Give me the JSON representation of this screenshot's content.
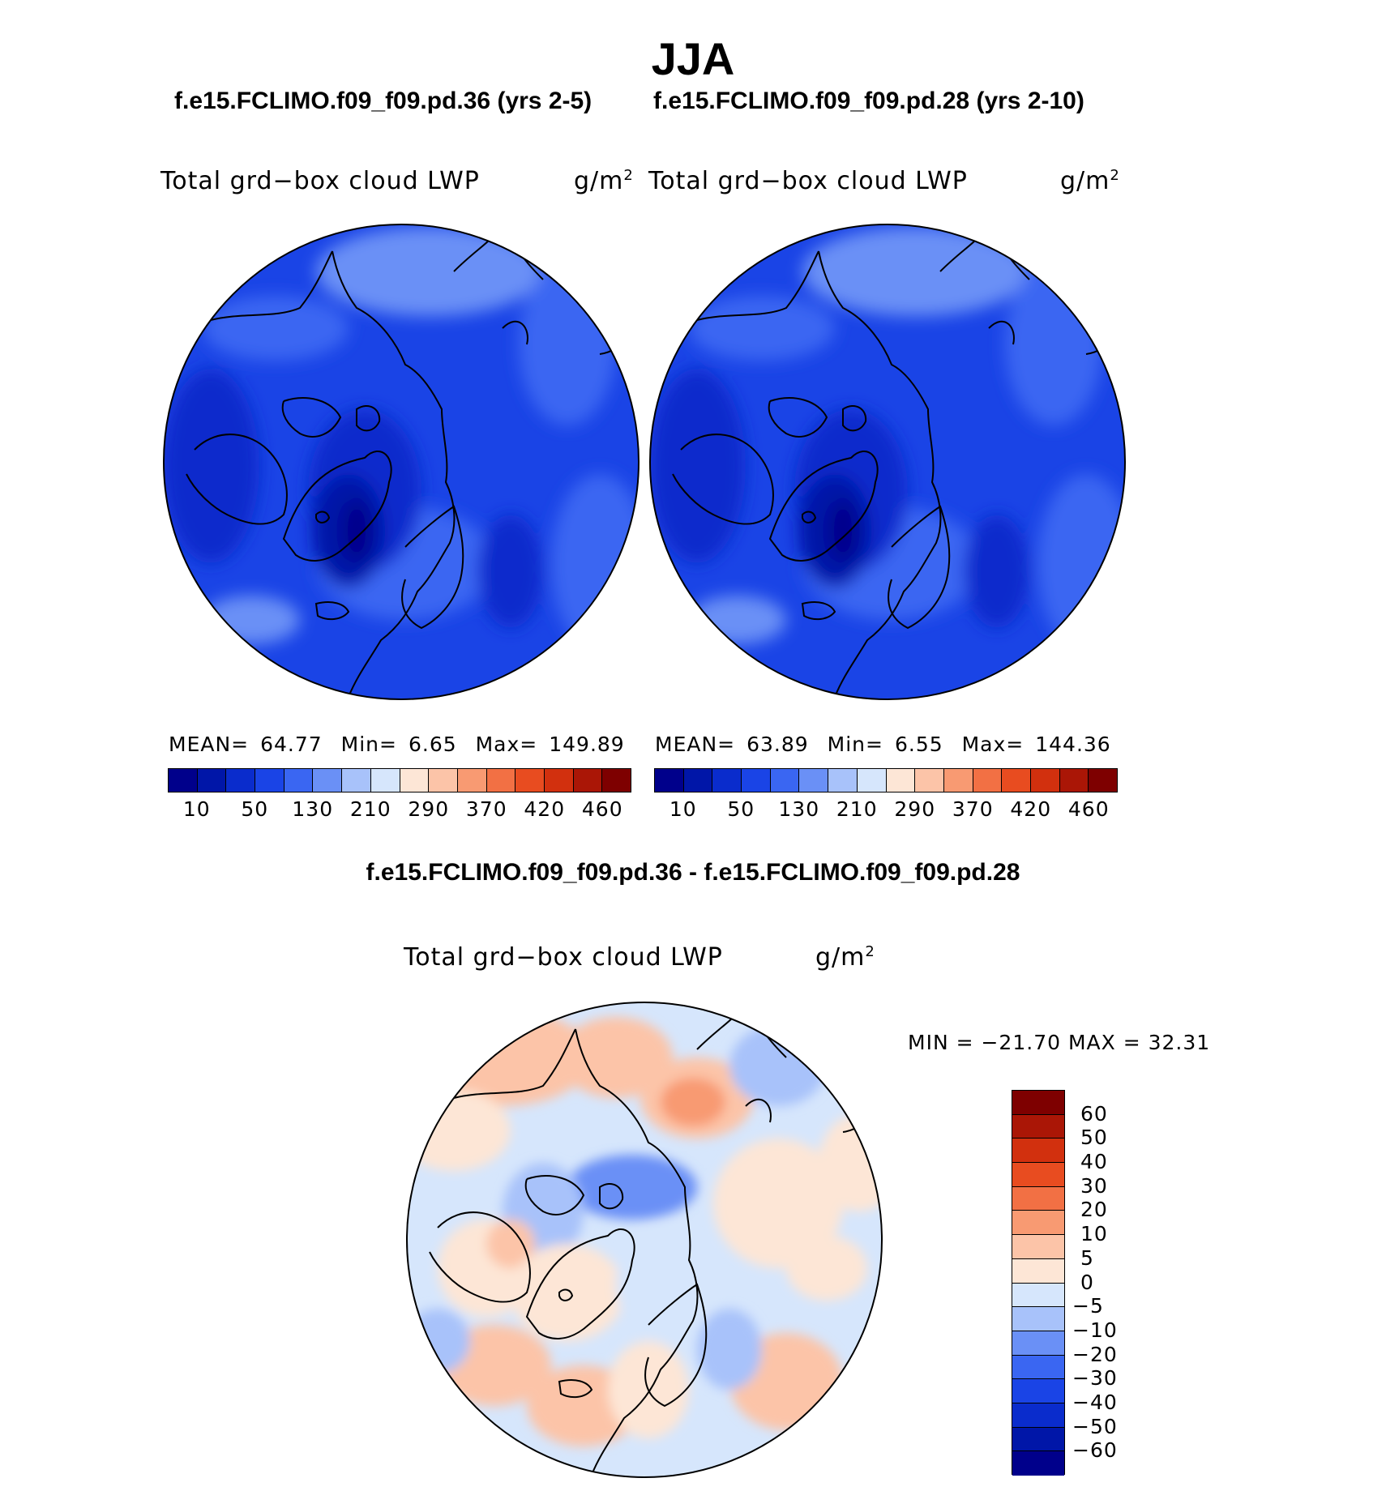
{
  "page": {
    "title": "JJA",
    "case_a_title": "f.e15.FCLIMO.f09_f09.pd.36 (yrs 2-5)",
    "case_b_title": "f.e15.FCLIMO.f09_f09.pd.28 (yrs 2-10)",
    "diff_title": "f.e15.FCLIMO.f09_f09.pd.36 - f.e15.FCLIMO.f09_f09.pd.28"
  },
  "panels": [
    {
      "var_name": "Total grd−box cloud LWP",
      "units": "g/m",
      "units_sup": "2",
      "stats": {
        "mean_label": "MEAN=",
        "mean": "64.77",
        "min_label": "Min=",
        "min": "6.65",
        "max_label": "Max=",
        "max": "149.89"
      }
    },
    {
      "var_name": "Total grd−box cloud LWP",
      "units": "g/m",
      "units_sup": "2",
      "stats": {
        "mean_label": "MEAN=",
        "mean": "63.89",
        "min_label": "Min=",
        "min": "6.55",
        "max_label": "Max=",
        "max": "144.36"
      }
    }
  ],
  "diff_panel": {
    "var_name": "Total grd−box cloud LWP",
    "units": "g/m",
    "units_sup": "2",
    "stats": "MIN = −21.70 MAX =   32.31"
  },
  "colorbar_abs": {
    "colors": [
      "#00008b",
      "#0016a8",
      "#0a2ccc",
      "#1a44e6",
      "#3a66f2",
      "#6a90f6",
      "#a8c2fa",
      "#d6e6fc",
      "#fde6d6",
      "#fcc4a8",
      "#f89a72",
      "#f27044",
      "#e84c20",
      "#d2300e",
      "#aa1606",
      "#7e0000"
    ],
    "labels": [
      "10",
      "50",
      "130",
      "210",
      "290",
      "370",
      "420",
      "460"
    ]
  },
  "colorbar_diff": {
    "colors": [
      "#7e0000",
      "#aa1606",
      "#d2300e",
      "#e84c20",
      "#f27044",
      "#f89a72",
      "#fcc4a8",
      "#fde6d6",
      "#d6e6fc",
      "#a8c2fa",
      "#6a90f6",
      "#3a66f2",
      "#1a44e6",
      "#0a2ccc",
      "#0016a8",
      "#00008b"
    ],
    "labels": [
      "60",
      "50",
      "40",
      "30",
      "20",
      "10",
      "5",
      "0",
      "−5",
      "−10",
      "−20",
      "−30",
      "−40",
      "−50",
      "−60"
    ]
  },
  "map_colors": {
    "abs_base": "#1a44e6",
    "abs_light": "#3a66f2",
    "abs_lighter": "#6a90f6",
    "abs_dark": "#0a2ccc",
    "abs_darker": "#0016a8",
    "abs_darkest": "#00008b",
    "diff_base": "#d6e6fc",
    "diff_pos1": "#fde6d6",
    "diff_pos2": "#fcc4a8",
    "diff_pos3": "#f89a72",
    "diff_neg1": "#a8c2fa",
    "diff_neg2": "#6a90f6",
    "coast": "#000000"
  }
}
